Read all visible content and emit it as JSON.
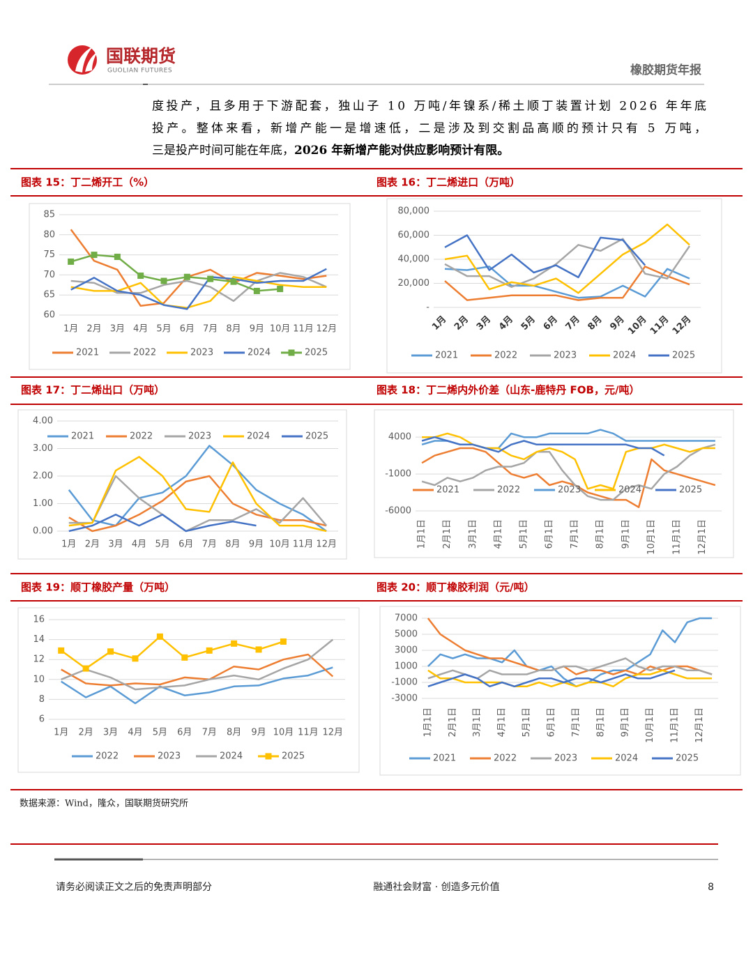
{
  "header": {
    "logo_cn": "国联期货",
    "logo_en": "GUOLIAN FUTURES",
    "report": "橡胶期货年报"
  },
  "paragraph": {
    "lines": [
      "度投产，且多用于下游配套，独山子 10 万吨/年镍系/稀土顺丁装置计划 2026 年年底",
      "投产。整体来看，新增产能一是增速低，二是涉及到交割品高顺的预计只有 5 万吨，",
      "三是投产时间可能在年底，"
    ],
    "bold": "2026 年新增产能对供应影响预计有限。"
  },
  "chart_data": [
    {
      "type": "line",
      "title": "图表 15：丁二烯开工（%）",
      "grid": true,
      "legend": "bottom",
      "categories": [
        "1月",
        "2月",
        "3月",
        "4月",
        "5月",
        "6月",
        "7月",
        "8月",
        "9月",
        "10月",
        "11月",
        "12月"
      ],
      "ylim": [
        60,
        85
      ],
      "yticks": [
        60,
        65,
        70,
        75,
        80,
        85
      ],
      "series": [
        {
          "name": "2021",
          "color": "#ed7d31",
          "values": [
            81.3,
            73.5,
            71.3,
            62.3,
            63,
            69.5,
            71.3,
            68,
            70.5,
            69.8,
            69,
            69.8
          ]
        },
        {
          "name": "2022",
          "color": "#a5a5a5",
          "values": [
            68.5,
            68,
            65.5,
            65.5,
            67.5,
            68.5,
            67,
            63.5,
            68.5,
            70.5,
            69.5,
            67
          ]
        },
        {
          "name": "2023",
          "color": "#ffc000",
          "values": [
            67,
            66,
            66,
            68,
            62.5,
            61.8,
            63.5,
            69.5,
            68.5,
            67.5,
            67,
            67
          ]
        },
        {
          "name": "2024",
          "color": "#4472c4",
          "values": [
            66.3,
            69.3,
            66,
            65,
            62.5,
            61.5,
            69.5,
            69,
            68,
            68.5,
            68.5,
            71.5
          ]
        },
        {
          "name": "2025",
          "color": "#70ad47",
          "marker": "square",
          "values": [
            73.3,
            75,
            74.5,
            69.8,
            68.5,
            69.5,
            69,
            68.3,
            66,
            66.5,
            null,
            null
          ]
        }
      ]
    },
    {
      "type": "line",
      "title": "图表 16：丁二烯进口（万吨）",
      "grid": true,
      "legend": "bottom",
      "categories": [
        "1月",
        "2月",
        "3月",
        "4月",
        "5月",
        "6月",
        "7月",
        "8月",
        "9月",
        "10月",
        "11月",
        "12月"
      ],
      "ylim": [
        0,
        80000
      ],
      "yticks": [
        {
          "value": 0,
          "label": "-"
        },
        {
          "value": 20000,
          "label": "20,000"
        },
        {
          "value": 40000,
          "label": "40,000"
        },
        {
          "value": 60000,
          "label": "60,000"
        },
        {
          "value": 80000,
          "label": "80,000"
        }
      ],
      "series": [
        {
          "name": "2021",
          "color": "#5b9bd5",
          "values": [
            32000,
            31000,
            34000,
            18000,
            18000,
            13000,
            8000,
            9000,
            18000,
            9000,
            32000,
            24000
          ]
        },
        {
          "name": "2022",
          "color": "#ed7d31",
          "values": [
            22000,
            6000,
            8000,
            10000,
            10000,
            10000,
            6000,
            8000,
            8000,
            34000,
            26000,
            19000
          ]
        },
        {
          "name": "2023",
          "color": "#a5a5a5",
          "values": [
            36000,
            26000,
            26000,
            17000,
            24000,
            36000,
            52000,
            47000,
            57000,
            28000,
            24000,
            51000
          ]
        },
        {
          "name": "2024",
          "color": "#ffc000",
          "values": [
            40000,
            43000,
            15000,
            21000,
            18000,
            24000,
            12000,
            28000,
            44000,
            54000,
            69000,
            52000
          ]
        },
        {
          "name": "2025",
          "color": "#4472c4",
          "values": [
            50000,
            60000,
            31000,
            44000,
            29000,
            35000,
            25000,
            58000,
            56000,
            35000,
            null,
            null
          ]
        }
      ]
    },
    {
      "type": "line",
      "title": "图表 17：丁二烯出口（万吨）",
      "grid": true,
      "legend": "top",
      "categories": [
        "1月",
        "2月",
        "3月",
        "4月",
        "5月",
        "6月",
        "7月",
        "8月",
        "9月",
        "10月",
        "11月",
        "12月"
      ],
      "ylim": [
        0,
        4
      ],
      "yticks": [
        {
          "value": 0,
          "label": "0.00"
        },
        {
          "value": 1,
          "label": "1.00"
        },
        {
          "value": 2,
          "label": "2.00"
        },
        {
          "value": 3,
          "label": "3.00"
        },
        {
          "value": 4,
          "label": "4.00"
        }
      ],
      "series": [
        {
          "name": "2021",
          "color": "#5b9bd5",
          "values": [
            1.5,
            0.4,
            0.2,
            1.2,
            1.4,
            2.0,
            3.1,
            2.4,
            1.5,
            1.0,
            0.6,
            0.0
          ]
        },
        {
          "name": "2022",
          "color": "#ed7d31",
          "values": [
            0.5,
            0,
            0.2,
            0.6,
            1.1,
            1.8,
            2.0,
            1.0,
            0.6,
            0.4,
            0.4,
            0.2
          ]
        },
        {
          "name": "2023",
          "color": "#a5a5a5",
          "values": [
            0.3,
            0.3,
            2.0,
            1.2,
            0.6,
            0.0,
            0.4,
            0.4,
            0.8,
            0.3,
            1.2,
            0.2
          ]
        },
        {
          "name": "2024",
          "color": "#ffc000",
          "values": [
            0.2,
            0.3,
            2.2,
            2.7,
            2.0,
            0.8,
            0.7,
            2.5,
            1.0,
            0.2,
            0.2,
            0.0
          ]
        },
        {
          "name": "2025",
          "color": "#4472c4",
          "values": [
            0,
            0.2,
            0.6,
            0.2,
            0.6,
            0,
            0.2,
            0.35,
            0.2,
            null,
            null,
            null
          ]
        }
      ]
    },
    {
      "type": "line",
      "title": "图表 18：丁二烯内外价差（山东-鹿特丹 FOB，元/吨）",
      "grid": true,
      "legend": "bottom",
      "categories": [
        "1月1日",
        null,
        "2月1日",
        null,
        "3月1日",
        null,
        "4月1日",
        null,
        "5月1日",
        null,
        "6月1日",
        null,
        "7月1日",
        null,
        "8月1日",
        null,
        "9月1日",
        null,
        "10月1日",
        null,
        "11月1日",
        null,
        "12月1日",
        null
      ],
      "ylim": [
        -6000,
        6000
      ],
      "yticks": [
        -6000,
        -1000,
        4000
      ],
      "series": [
        {
          "name": "2021",
          "color": "#ed7d31",
          "values": [
            500,
            1500,
            2000,
            2500,
            2500,
            2000,
            500,
            -1000,
            -1500,
            -1000,
            -2500,
            -2000,
            -2500,
            -3500,
            -4000,
            -4500,
            -4500,
            -5500,
            1000,
            -500,
            -1000,
            -1500,
            -2000,
            -2500
          ]
        },
        {
          "name": "2022",
          "color": "#a5a5a5",
          "values": [
            -2000,
            -2500,
            -1500,
            -2000,
            -1500,
            -500,
            0,
            0,
            500,
            2000,
            2000,
            -500,
            -2500,
            -4000,
            -4500,
            -4500,
            -3000,
            -2500,
            -3000,
            -1000,
            0,
            1500,
            2500,
            3000
          ]
        },
        {
          "name": "2023",
          "color": "#5b9bd5",
          "values": [
            3000,
            3500,
            3500,
            3000,
            3000,
            2500,
            2500,
            4500,
            4000,
            4000,
            4500,
            4500,
            4500,
            4500,
            5000,
            4500,
            3500,
            3500,
            3500,
            3500,
            3500,
            3500,
            3500,
            3500
          ]
        },
        {
          "name": "2024",
          "color": "#ffc000",
          "values": [
            4000,
            4000,
            4500,
            4000,
            3000,
            2500,
            2500,
            1500,
            1000,
            2000,
            2500,
            2000,
            1000,
            -3000,
            -2500,
            -3000,
            2000,
            2500,
            2500,
            3000,
            2500,
            2000,
            2500,
            2500
          ]
        },
        {
          "name": "2025",
          "color": "#4472c4",
          "values": [
            3500,
            4000,
            3500,
            3000,
            3000,
            2500,
            2000,
            3000,
            3500,
            3000,
            3000,
            3000,
            3000,
            3000,
            3000,
            3000,
            3000,
            2500,
            2500,
            1500,
            null,
            null,
            null,
            null
          ]
        }
      ]
    },
    {
      "type": "line",
      "title": "图表 19：顺丁橡胶产量（万吨）",
      "grid": true,
      "legend": "bottom",
      "categories": [
        "1月",
        "2月",
        "3月",
        "4月",
        "5月",
        "6月",
        "7月",
        "8月",
        "9月",
        "10月",
        "11月",
        "12月"
      ],
      "ylim": [
        6,
        16
      ],
      "yticks": [
        6,
        8,
        10,
        12,
        14,
        16
      ],
      "series": [
        {
          "name": "2022",
          "color": "#5b9bd5",
          "values": [
            9.8,
            8.2,
            9.3,
            7.6,
            9.3,
            8.4,
            8.7,
            9.3,
            9.4,
            10.1,
            10.4,
            11.2
          ]
        },
        {
          "name": "2023",
          "color": "#ed7d31",
          "values": [
            11.0,
            9.6,
            9.4,
            9.6,
            9.5,
            10.2,
            10.0,
            11.3,
            11.0,
            12.0,
            12.5,
            10.3
          ]
        },
        {
          "name": "2024",
          "color": "#a5a5a5",
          "values": [
            10.0,
            11.0,
            10.2,
            9.0,
            9.2,
            9.4,
            10.0,
            10.4,
            10.0,
            11.1,
            12.0,
            14.0
          ]
        },
        {
          "name": "2025",
          "color": "#ffc000",
          "marker": "square",
          "values": [
            12.9,
            11.1,
            12.8,
            12.1,
            14.3,
            12.2,
            12.9,
            13.6,
            13.0,
            13.8,
            null,
            null
          ]
        }
      ]
    },
    {
      "type": "line",
      "title": "图表 20：顺丁橡胶利润（元/吨）",
      "grid": true,
      "legend": "bottom",
      "categories": [
        "1月1日",
        null,
        "2月1日",
        null,
        "3月1日",
        null,
        "4月1日",
        null,
        "5月1日",
        null,
        "6月1日",
        null,
        "7月1日",
        null,
        "8月1日",
        null,
        "9月1日",
        null,
        "10月1日",
        null,
        "11月1日",
        null,
        "12月1日",
        null
      ],
      "ylim": [
        -3000,
        7000
      ],
      "yticks": [
        -3000,
        -1000,
        1000,
        3000,
        5000,
        7000
      ],
      "series": [
        {
          "name": "2021",
          "color": "#5b9bd5",
          "values": [
            1000,
            2500,
            2000,
            2500,
            2000,
            2000,
            1500,
            3000,
            1000,
            500,
            1000,
            -500,
            -1500,
            -1000,
            0,
            500,
            500,
            1500,
            2500,
            5500,
            4000,
            6500,
            7000,
            7000
          ]
        },
        {
          "name": "2022",
          "color": "#ed7d31",
          "values": [
            7000,
            5000,
            4000,
            3000,
            2500,
            2000,
            2000,
            1500,
            1000,
            500,
            500,
            1000,
            0,
            500,
            500,
            0,
            500,
            0,
            1000,
            500,
            1000,
            1000,
            500,
            0
          ]
        },
        {
          "name": "2023",
          "color": "#a5a5a5",
          "values": [
            -500,
            0,
            500,
            0,
            -500,
            500,
            0,
            0,
            0,
            500,
            500,
            1000,
            1000,
            500,
            1000,
            1500,
            2000,
            1000,
            500,
            1000,
            1000,
            500,
            500,
            0
          ]
        },
        {
          "name": "2024",
          "color": "#ffc000",
          "values": [
            500,
            -500,
            -500,
            -1000,
            -1000,
            -1000,
            -1000,
            -1500,
            -1500,
            -1000,
            -1500,
            -1000,
            -1500,
            -1000,
            -1000,
            -1500,
            -500,
            0,
            0,
            500,
            0,
            -500,
            -500,
            -500
          ]
        },
        {
          "name": "2025",
          "color": "#4472c4",
          "values": [
            -1500,
            -1000,
            -500,
            0,
            -500,
            -1500,
            -1000,
            -1500,
            -1000,
            -500,
            -500,
            -1000,
            -500,
            -500,
            -1000,
            -500,
            0,
            -500,
            -500,
            0,
            500,
            null,
            null,
            null
          ]
        }
      ]
    }
  ],
  "source": "数据来源：Wind，隆众，国联期货研究所",
  "footer": {
    "disclaimer": "请务必阅读正文之后的免责声明部分",
    "slogan": "融通社会财富 · 创造多元价值",
    "page": "8"
  }
}
